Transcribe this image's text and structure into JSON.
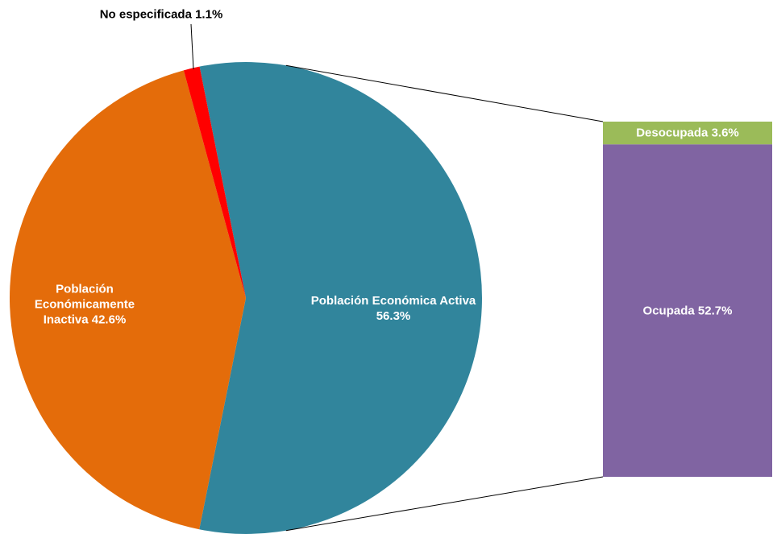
{
  "chart_data": {
    "type": "pie",
    "categories": [
      "Población Económica Activa",
      "Población Económicamente Inactiva",
      "No especificada"
    ],
    "values": [
      56.3,
      42.6,
      1.1
    ],
    "value_labels": [
      "56.3%",
      "42.6%",
      "1.1%"
    ],
    "colors": [
      "#31859c",
      "#e46c0a",
      "#ff0000"
    ],
    "bar": {
      "categories": [
        "Ocupada",
        "Desocupada"
      ],
      "values": [
        52.7,
        3.6
      ],
      "value_labels": [
        "52.7%",
        "3.6%"
      ],
      "colors": [
        "#8064a2",
        "#9bbb59"
      ]
    }
  }
}
